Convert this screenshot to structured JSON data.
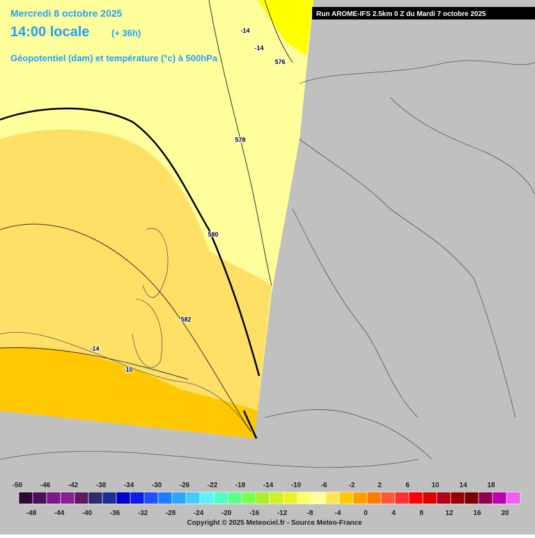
{
  "header": {
    "date": "Mercredi 8 octobre 2025",
    "time": "14:00 locale",
    "lead": "(+ 36h)",
    "field": "Géopotentiel (dam) et température (°c) à 500hPa",
    "run": "Run AROME-IFS 2.5km 0 Z du Mardi 7 octobre 2025"
  },
  "contour_labels": [
    "-14",
    "-14",
    "576",
    "578",
    "580",
    "582",
    "-14",
    "-10"
  ],
  "legend": {
    "ticks": [
      -50,
      -48,
      -46,
      -44,
      -42,
      -40,
      -38,
      -36,
      -34,
      -32,
      -30,
      -28,
      -26,
      -24,
      -22,
      -20,
      -18,
      -16,
      -14,
      -12,
      -10,
      -8,
      -6,
      -4,
      -2,
      0,
      2,
      4,
      6,
      8,
      10,
      12,
      14,
      16,
      18,
      20
    ],
    "colors": [
      "#2d0a32",
      "#4a0f5a",
      "#781a88",
      "#8a2090",
      "#5e1a5e",
      "#2c2c6c",
      "#1c2e9c",
      "#0000c8",
      "#0a1ee8",
      "#1e50ff",
      "#1e7cff",
      "#2ea4ff",
      "#40ccff",
      "#5cf2ff",
      "#50ffc8",
      "#5aff8c",
      "#78ff50",
      "#a8f02a",
      "#ccf02a",
      "#f0f02a",
      "#ffff6a",
      "#ffff9a",
      "#ffe650",
      "#ffc800",
      "#ffa000",
      "#ff7a00",
      "#ff5a32",
      "#ff3030",
      "#ff0000",
      "#dc0000",
      "#b40018",
      "#960000",
      "#7a0000",
      "#8c0050",
      "#c000b0",
      "#f060f0"
    ]
  },
  "copyright": "Copyright © 2025 Meteociel.fr - Source Meteo-France"
}
